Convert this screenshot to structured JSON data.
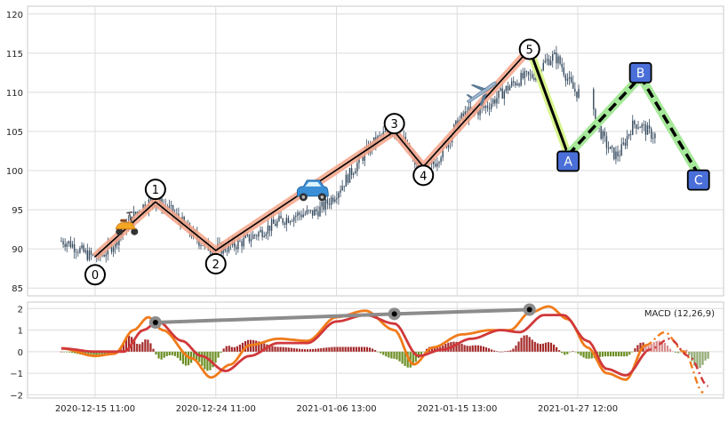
{
  "colors": {
    "background": "#ffffff",
    "panel_border": "#c8c8c8",
    "grid": "#dcdcdc",
    "candle": "#34495e",
    "wave_line": "#000000",
    "wave_glow": "#f4a58a",
    "corrective_glow": "#a6e89a",
    "corrective_glow_a": "#d8f58f",
    "label_box_fill": "#4a6fd8",
    "macd_line": "#f07b1a",
    "signal_line": "#d1383a",
    "hist_positive": "#a52a2a",
    "hist_negative": "#6b8e23",
    "hist_projection": "#d98b8b",
    "divergence_line": "#8c8c8c"
  },
  "icons": [
    "scooter-icon",
    "car-icon",
    "airplane-icon"
  ],
  "chart_data": [
    {
      "type": "candlestick",
      "title": "",
      "xlabel": "",
      "ylabel": "",
      "ylim": [
        84,
        121
      ],
      "grid": true,
      "y_ticks": [
        85,
        90,
        95,
        100,
        105,
        110,
        115,
        120
      ],
      "x_ticks": [
        {
          "x": 0,
          "label": "2020-12-15 11:00"
        },
        {
          "x": 0.25,
          "label": "2020-12-24 11:00"
        },
        {
          "x": 0.5,
          "label": "2021-01-06 13:00"
        },
        {
          "x": 0.75,
          "label": "2021-01-15 13:00"
        },
        {
          "x": 1.0,
          "label": "2021-01-27 12:00"
        }
      ],
      "price_anchors": [
        {
          "x": -0.07,
          "y": 91.0
        },
        {
          "x": 0.0,
          "y": 89.0
        },
        {
          "x": 0.12,
          "y": 96.0
        },
        {
          "x": 0.25,
          "y": 90.0
        },
        {
          "x": 0.44,
          "y": 94.5
        },
        {
          "x": 0.62,
          "y": 105.0
        },
        {
          "x": 0.68,
          "y": 100.0
        },
        {
          "x": 0.78,
          "y": 107.5
        },
        {
          "x": 0.9,
          "y": 112.0
        },
        {
          "x": 0.95,
          "y": 114.5
        },
        {
          "x": 1.0,
          "y": 110.0
        },
        {
          "x": 1.08,
          "y": 102.0
        },
        {
          "x": 1.12,
          "y": 106.0
        },
        {
          "x": 1.16,
          "y": 104.5
        }
      ],
      "wave_points": [
        {
          "label": "0",
          "x": 0.0,
          "y": 89.0,
          "label_y": 86.7
        },
        {
          "label": "1",
          "x": 0.125,
          "y": 96.0,
          "label_y": 97.6
        },
        {
          "label": "2",
          "x": 0.25,
          "y": 89.8,
          "label_y": 88.1
        },
        {
          "label": "3",
          "x": 0.62,
          "y": 105.0,
          "label_y": 106.0
        },
        {
          "label": "4",
          "x": 0.68,
          "y": 100.5,
          "label_y": 99.4
        },
        {
          "label": "5",
          "x": 0.9,
          "y": 115.5,
          "label_y": 115.5
        }
      ],
      "corrective_points": [
        {
          "label": "A",
          "x": 0.98,
          "y": 102.0,
          "label_y": 101.2
        },
        {
          "label": "B",
          "x": 1.13,
          "y": 112.0,
          "label_y": 112.5
        },
        {
          "label": "C",
          "x": 1.25,
          "y": 99.5,
          "label_y": 98.8
        }
      ],
      "icon_positions": [
        {
          "icon": "scooter-icon",
          "x": 0.065,
          "y": 93.0
        },
        {
          "icon": "car-icon",
          "x": 0.45,
          "y": 97.3
        },
        {
          "icon": "airplane-icon",
          "x": 0.8,
          "y": 110.0
        }
      ]
    },
    {
      "type": "line",
      "legend": "MACD (12,26,9)",
      "ylim": [
        -2.15,
        2.3
      ],
      "grid": true,
      "y_ticks": [
        -2,
        -1,
        0,
        1,
        2
      ],
      "macd_anchors": [
        {
          "x": -0.07,
          "y": 0.15
        },
        {
          "x": 0.0,
          "y": -0.2
        },
        {
          "x": 0.04,
          "y": -0.1
        },
        {
          "x": 0.08,
          "y": 1.0
        },
        {
          "x": 0.11,
          "y": 1.6
        },
        {
          "x": 0.14,
          "y": 1.0
        },
        {
          "x": 0.2,
          "y": -0.3
        },
        {
          "x": 0.24,
          "y": -1.2
        },
        {
          "x": 0.28,
          "y": -0.6
        },
        {
          "x": 0.32,
          "y": 0.3
        },
        {
          "x": 0.38,
          "y": 0.6
        },
        {
          "x": 0.44,
          "y": 0.5
        },
        {
          "x": 0.5,
          "y": 1.6
        },
        {
          "x": 0.56,
          "y": 1.9
        },
        {
          "x": 0.62,
          "y": 1.0
        },
        {
          "x": 0.66,
          "y": -0.6
        },
        {
          "x": 0.7,
          "y": 0.2
        },
        {
          "x": 0.76,
          "y": 0.8
        },
        {
          "x": 0.82,
          "y": 1.0
        },
        {
          "x": 0.86,
          "y": 1.0
        },
        {
          "x": 0.9,
          "y": 1.8
        },
        {
          "x": 0.94,
          "y": 2.1
        },
        {
          "x": 0.98,
          "y": 1.5
        },
        {
          "x": 1.02,
          "y": 0.2
        },
        {
          "x": 1.06,
          "y": -1.0
        },
        {
          "x": 1.1,
          "y": -1.3
        },
        {
          "x": 1.14,
          "y": 0.3
        },
        {
          "x": 1.18,
          "y": 0.9
        },
        {
          "x": 1.22,
          "y": 0.0
        },
        {
          "x": 1.26,
          "y": -1.9
        }
      ],
      "signal_anchors": [
        {
          "x": -0.07,
          "y": 0.15
        },
        {
          "x": 0.0,
          "y": 0.0
        },
        {
          "x": 0.06,
          "y": 0.0
        },
        {
          "x": 0.1,
          "y": 1.0
        },
        {
          "x": 0.13,
          "y": 1.4
        },
        {
          "x": 0.18,
          "y": 0.5
        },
        {
          "x": 0.22,
          "y": -0.2
        },
        {
          "x": 0.27,
          "y": -0.9
        },
        {
          "x": 0.32,
          "y": -0.2
        },
        {
          "x": 0.38,
          "y": 0.4
        },
        {
          "x": 0.44,
          "y": 0.4
        },
        {
          "x": 0.5,
          "y": 1.4
        },
        {
          "x": 0.56,
          "y": 1.7
        },
        {
          "x": 0.62,
          "y": 1.3
        },
        {
          "x": 0.67,
          "y": -0.2
        },
        {
          "x": 0.72,
          "y": 0.1
        },
        {
          "x": 0.78,
          "y": 0.6
        },
        {
          "x": 0.84,
          "y": 1.0
        },
        {
          "x": 0.88,
          "y": 0.9
        },
        {
          "x": 0.93,
          "y": 1.7
        },
        {
          "x": 0.97,
          "y": 1.7
        },
        {
          "x": 1.02,
          "y": 0.5
        },
        {
          "x": 1.06,
          "y": -0.8
        },
        {
          "x": 1.1,
          "y": -1.1
        },
        {
          "x": 1.15,
          "y": 0.1
        },
        {
          "x": 1.19,
          "y": 0.6
        },
        {
          "x": 1.23,
          "y": -0.2
        },
        {
          "x": 1.27,
          "y": -1.6
        }
      ],
      "projection_start_x": 1.14,
      "divergence_points": [
        {
          "x": 0.125,
          "y": 1.35
        },
        {
          "x": 0.62,
          "y": 1.75
        },
        {
          "x": 0.9,
          "y": 1.95
        }
      ]
    }
  ]
}
